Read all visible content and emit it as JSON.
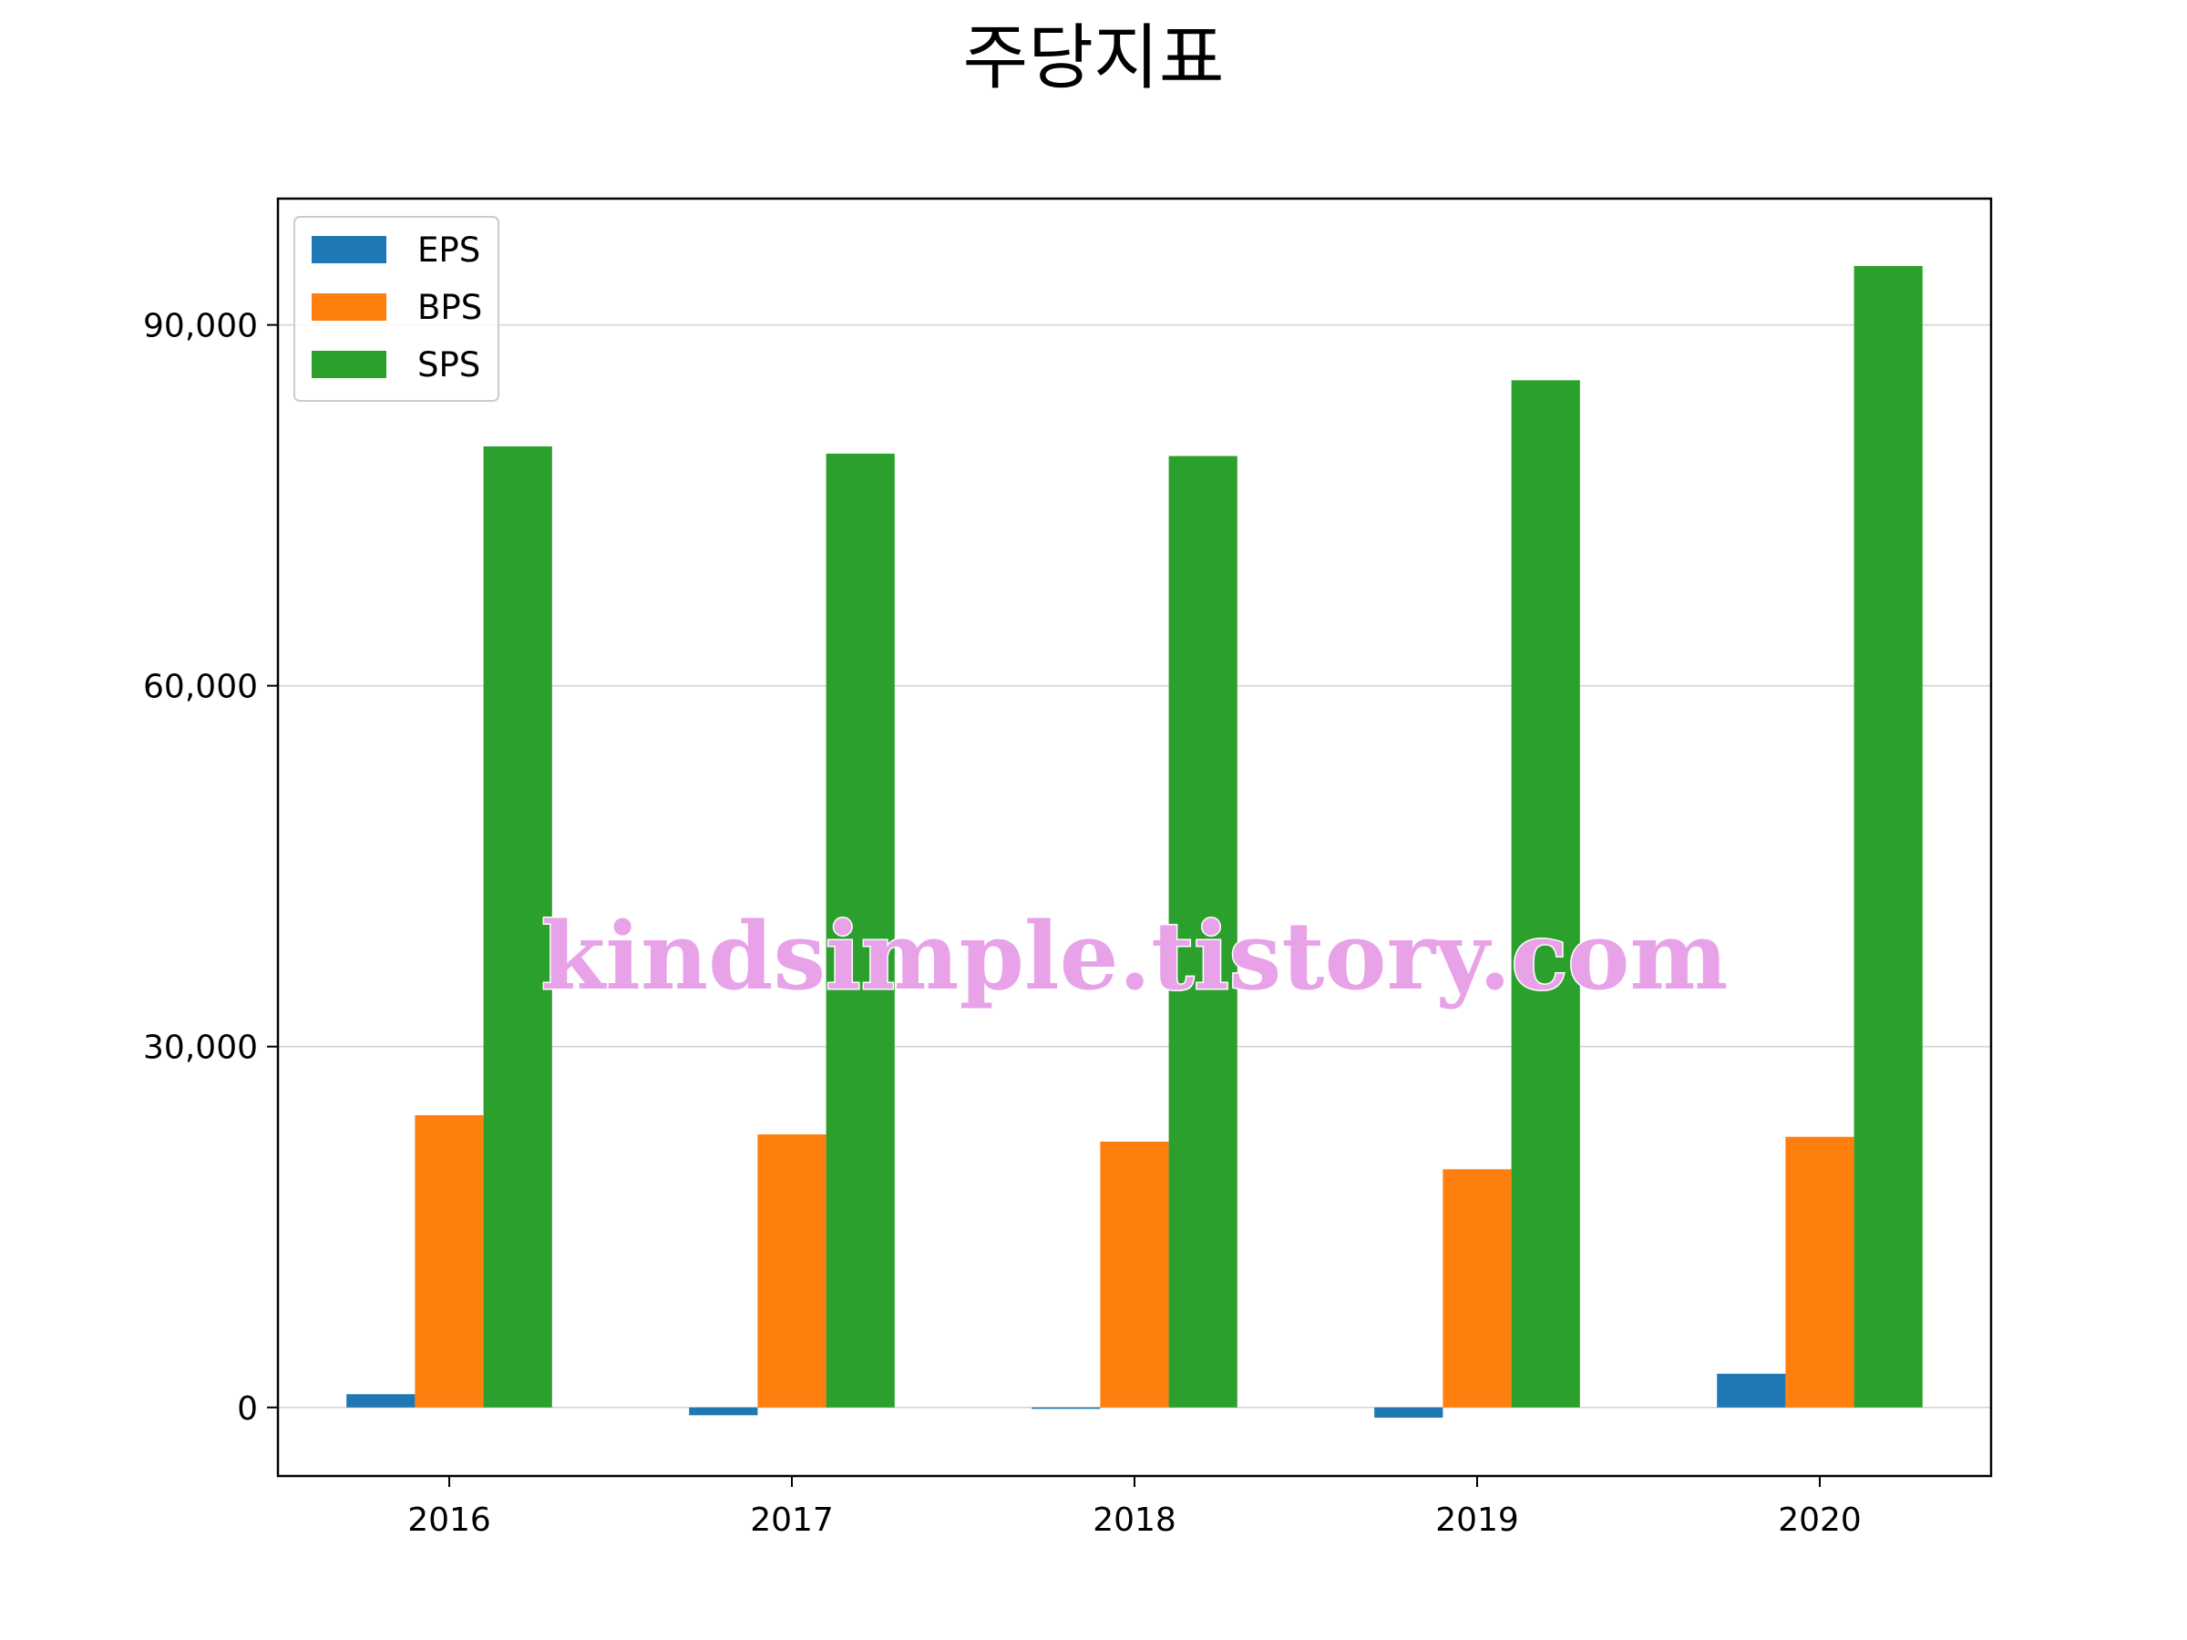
{
  "chart_data": {
    "type": "bar",
    "title": "주당지표",
    "xlabel": "",
    "ylabel": "",
    "categories": [
      "2016",
      "2017",
      "2018",
      "2019",
      "2020"
    ],
    "series": [
      {
        "name": "EPS",
        "color": "#1f77b4",
        "values": [
          1100,
          -650,
          -120,
          -850,
          2800
        ]
      },
      {
        "name": "BPS",
        "color": "#ff7f0e",
        "values": [
          24300,
          22700,
          22100,
          19800,
          22500
        ]
      },
      {
        "name": "SPS",
        "color": "#2ca02c",
        "values": [
          79900,
          79300,
          79100,
          85400,
          94900
        ]
      }
    ],
    "ylim": [
      -5700,
      100500
    ],
    "yticks": [
      0,
      30000,
      60000,
      90000
    ],
    "ytick_labels": [
      "0",
      "30,000",
      "60,000",
      "90,000"
    ],
    "grid": "y",
    "legend": "top-left",
    "watermark": "kindsimple.tistory.com"
  }
}
